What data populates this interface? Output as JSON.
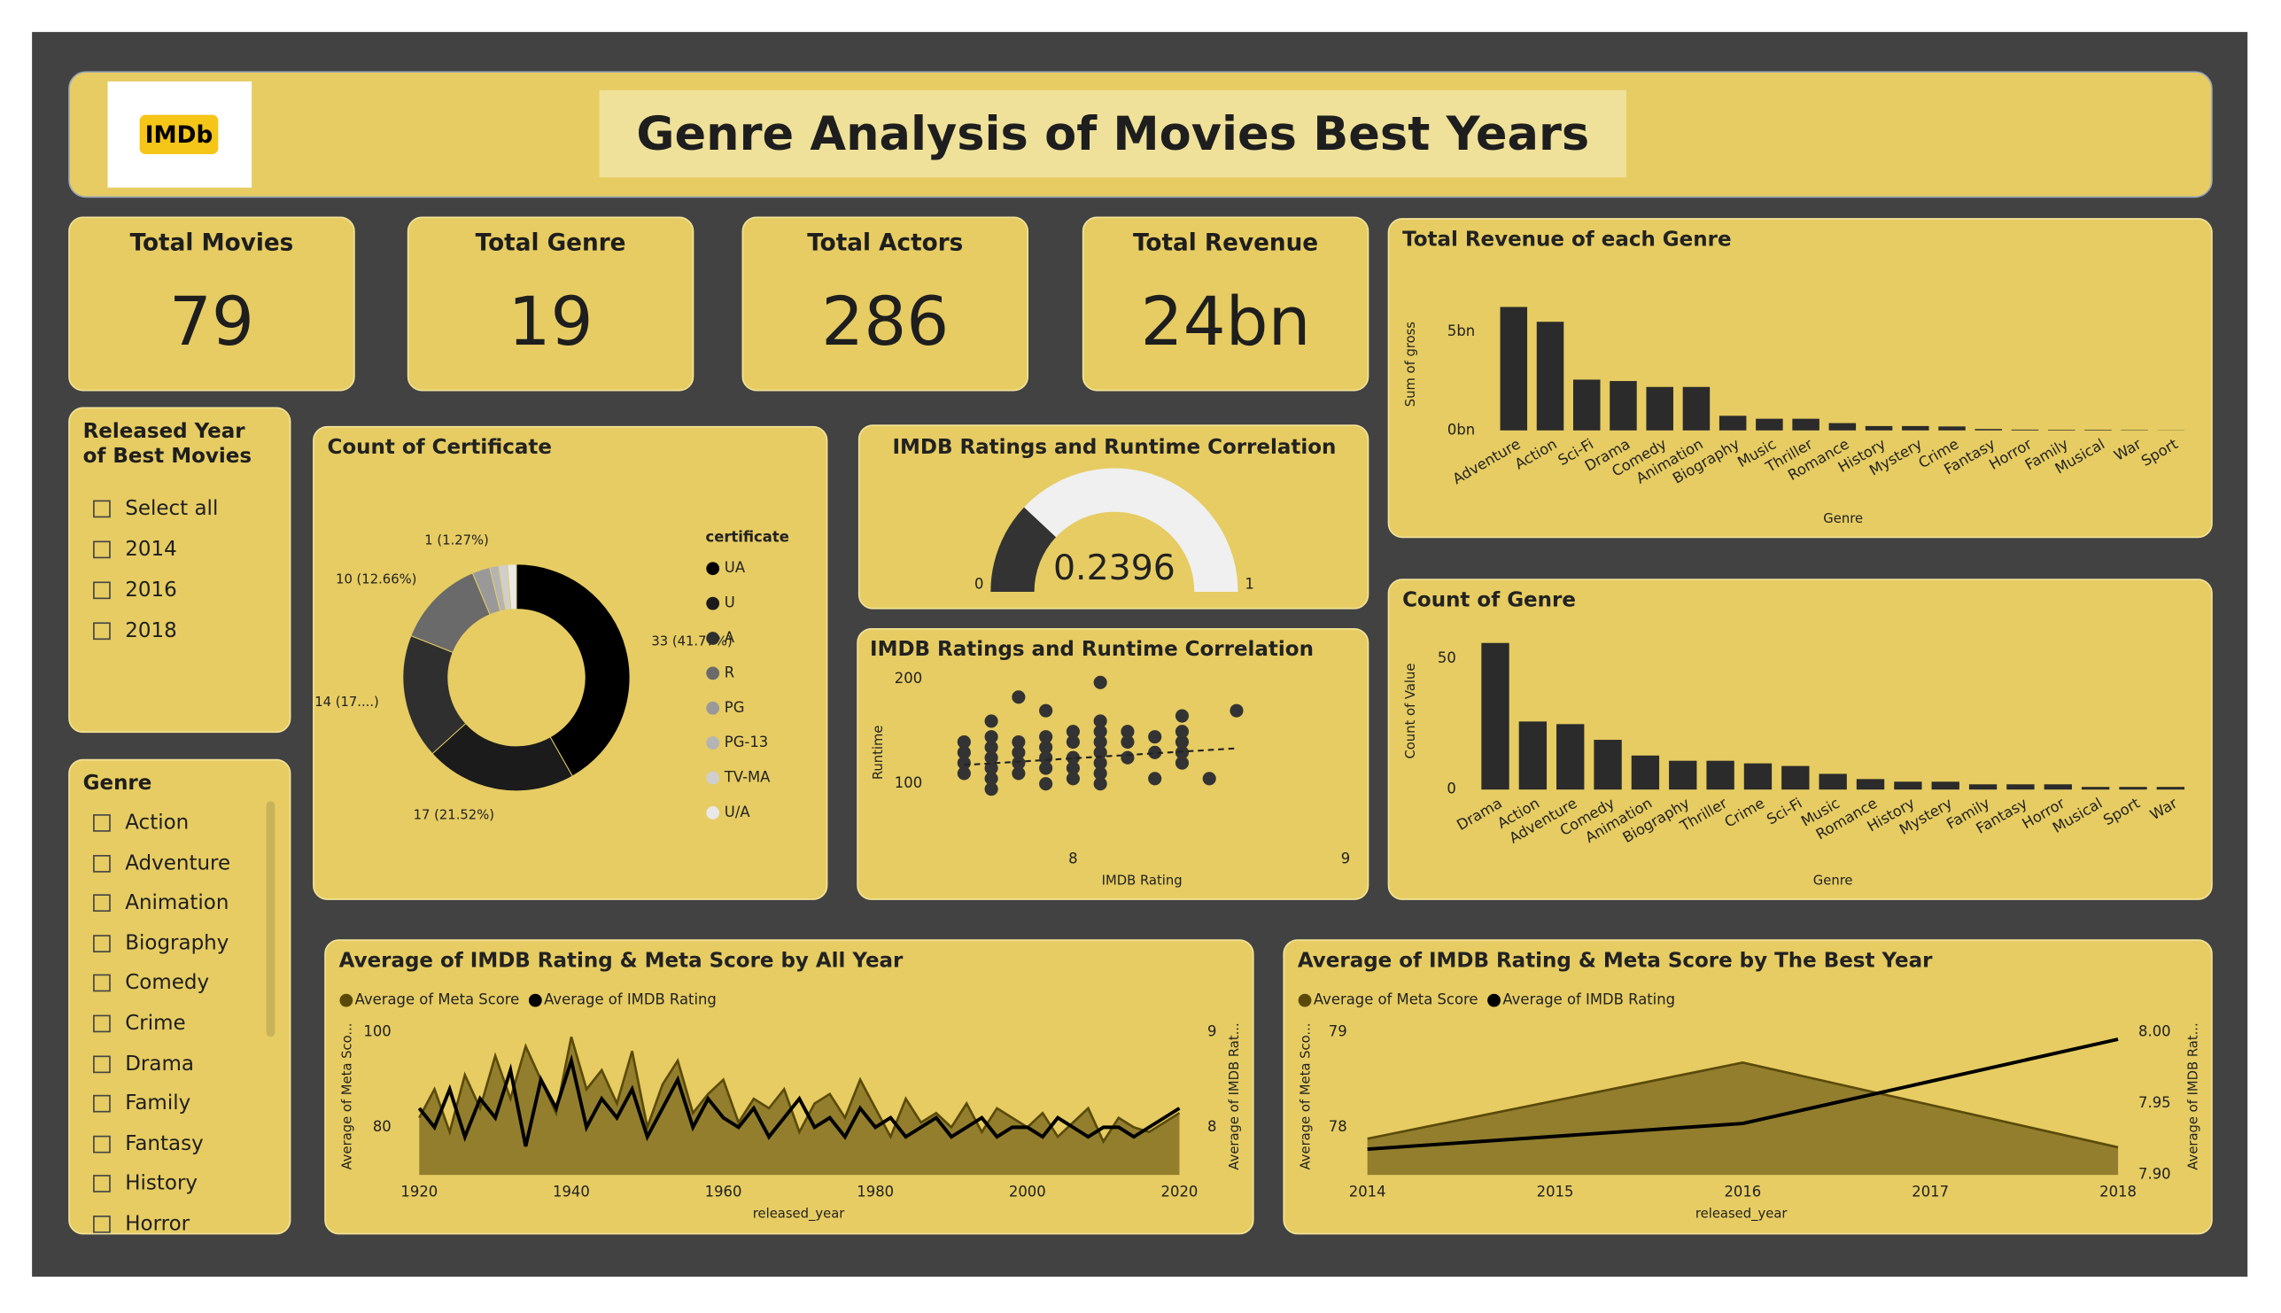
{
  "header": {
    "logo": "IMDb",
    "title": "Genre Analysis of Movies Best Years"
  },
  "kpis": [
    {
      "label": "Total Movies",
      "value": 79
    },
    {
      "label": "Total Genre",
      "value": 19
    },
    {
      "label": "Total Actors",
      "value": 286
    },
    {
      "label": "Total Revenue",
      "value": "24bn"
    }
  ],
  "slicers": [
    {
      "title": "Released Year of Best Movies",
      "items": [
        "Select all",
        "2014",
        "2016",
        "2018"
      ]
    },
    {
      "title": "Genre",
      "items": [
        "Action",
        "Adventure",
        "Animation",
        "Biography",
        "Comedy",
        "Crime",
        "Drama",
        "Family",
        "Fantasy",
        "History",
        "Horror"
      ]
    }
  ],
  "chart_data": [
    {
      "type": "bar",
      "title": "Total Revenue of each Genre",
      "x_label": "Genre",
      "y_label": "Sum of gross",
      "color": "#2b2b2b",
      "categories": [
        "Adventure",
        "Action",
        "Sci-Fi",
        "Drama",
        "Comedy",
        "Animation",
        "Biography",
        "Music",
        "Thriller",
        "Romance",
        "History",
        "Mystery",
        "Crime",
        "Fantasy",
        "Horror",
        "Family",
        "Musical",
        "War",
        "Sport"
      ],
      "values": [
        6250000000,
        5500000000,
        2570000000,
        2500000000,
        2200000000,
        2200000000,
        740000000,
        590000000,
        590000000,
        370000000,
        220000000,
        220000000,
        200000000,
        70000000,
        40000000,
        30000000,
        30000000,
        20000000,
        10000000
      ],
      "ylim": [
        0,
        6700000000
      ],
      "yticks": [
        {
          "value": 0,
          "label": "0bn"
        },
        {
          "value": 5000000000,
          "label": "5bn"
        }
      ]
    },
    {
      "type": "pie",
      "title": "Count of Certificate",
      "legend_title": "certificate",
      "categories": [
        "UA",
        "U",
        "A",
        "R",
        "PG",
        "PG-13",
        "TV-MA",
        "U/A"
      ],
      "values": [
        33,
        17,
        14,
        10,
        2,
        1,
        1,
        1
      ],
      "value_labels": [
        "33 (41.77%)",
        "17 (21.52%)",
        "14 (17....)",
        "10 (12.66%)",
        null,
        "1 (1.27%)",
        null,
        null
      ],
      "colors": [
        "#000000",
        "#1b1b1b",
        "#2f2f2f",
        "#6a6a6a",
        "#999999",
        "#b4b4b4",
        "#cfcfcf",
        "#e9e9e9"
      ]
    },
    {
      "type": "gauge",
      "title": "IMDB Ratings and Runtime Correlation",
      "value": 0.2396,
      "min": 0,
      "max": 1,
      "color": "#333333",
      "track_color": "#f0f0f0"
    },
    {
      "type": "scatter",
      "title": "IMDB Ratings and Runtime Correlation",
      "x_label": "IMDB Rating",
      "y_label": "Runtime",
      "color": "#333333",
      "x": [
        7.6,
        7.6,
        7.6,
        7.6,
        7.7,
        7.7,
        7.7,
        7.7,
        7.7,
        7.7,
        7.7,
        7.8,
        7.8,
        7.8,
        7.8,
        7.8,
        7.9,
        7.9,
        7.9,
        7.9,
        7.9,
        7.9,
        8.0,
        8.0,
        8.0,
        8.0,
        8.0,
        8.1,
        8.1,
        8.1,
        8.1,
        8.1,
        8.1,
        8.1,
        8.1,
        8.2,
        8.2,
        8.2,
        8.3,
        8.3,
        8.3,
        8.4,
        8.4,
        8.4,
        8.4,
        8.4,
        8.5,
        8.6
      ],
      "y": [
        110,
        120,
        130,
        140,
        95,
        105,
        115,
        125,
        135,
        145,
        160,
        110,
        120,
        130,
        140,
        183,
        100,
        115,
        125,
        135,
        145,
        170,
        105,
        115,
        125,
        140,
        150,
        100,
        110,
        120,
        130,
        140,
        150,
        160,
        197,
        125,
        140,
        150,
        105,
        130,
        145,
        120,
        130,
        140,
        150,
        165,
        105,
        170
      ],
      "trendline": {
        "x": [
          7.6,
          8.6
        ],
        "y": [
          118,
          134
        ]
      },
      "xlim": [
        7.5,
        9.0
      ],
      "xticks": [
        8,
        9
      ],
      "ylim": [
        50,
        210
      ],
      "yticks": [
        100,
        200
      ]
    },
    {
      "type": "bar",
      "title": "Count of Genre",
      "x_label": "Genre",
      "y_label": "Count of Value",
      "color": "#2b2b2b",
      "categories": [
        "Drama",
        "Action",
        "Adventure",
        "Comedy",
        "Animation",
        "Biography",
        "Thriller",
        "Crime",
        "Sci-Fi",
        "Music",
        "Romance",
        "History",
        "Mystery",
        "Family",
        "Fantasy",
        "Horror",
        "Musical",
        "Sport",
        "War"
      ],
      "values": [
        56,
        26,
        25,
        19,
        13,
        11,
        11,
        10,
        9,
        6,
        4,
        3,
        3,
        2,
        2,
        2,
        1,
        1,
        1
      ],
      "ylim": [
        0,
        60
      ],
      "yticks": [
        0,
        50
      ]
    },
    {
      "type": "area_line",
      "title": "Average of IMDB Rating & Meta Score by All Year",
      "x_label": "released_year",
      "y_label": "Average of Meta Sco...",
      "y2_label": "Average of IMDB Rat...",
      "x": [
        1920,
        1922,
        1924,
        1926,
        1928,
        1930,
        1932,
        1934,
        1936,
        1938,
        1940,
        1942,
        1944,
        1946,
        1948,
        1950,
        1952,
        1954,
        1956,
        1958,
        1960,
        1962,
        1964,
        1966,
        1968,
        1970,
        1972,
        1974,
        1976,
        1978,
        1980,
        1982,
        1984,
        1986,
        1988,
        1990,
        1992,
        1994,
        1996,
        1998,
        2000,
        2002,
        2004,
        2006,
        2008,
        2010,
        2012,
        2014,
        2016,
        2018,
        2020
      ],
      "series": [
        {
          "name": "Average of Meta Score",
          "color": "#5a4a0a",
          "axis": "y",
          "area": true,
          "values": [
            82,
            88,
            79,
            91,
            84,
            95,
            86,
            97,
            90,
            83,
            99,
            88,
            92,
            85,
            96,
            80,
            89,
            94,
            83,
            87,
            90,
            81,
            86,
            84,
            88,
            79,
            85,
            87,
            82,
            90,
            84,
            78,
            86,
            81,
            83,
            80,
            85,
            79,
            84,
            82,
            80,
            83,
            78,
            81,
            84,
            77,
            82,
            80,
            79,
            81,
            83
          ]
        },
        {
          "name": "Average of IMDB Rating",
          "color": "#000000",
          "axis": "y2",
          "values": [
            8.2,
            8.0,
            8.4,
            7.9,
            8.3,
            8.1,
            8.6,
            7.8,
            8.5,
            8.2,
            8.7,
            8.0,
            8.3,
            8.1,
            8.4,
            7.9,
            8.2,
            8.5,
            8.0,
            8.3,
            8.1,
            8.0,
            8.2,
            7.9,
            8.1,
            8.3,
            8.0,
            8.1,
            7.9,
            8.2,
            8.0,
            8.1,
            7.9,
            8.0,
            8.1,
            7.9,
            8.0,
            8.1,
            7.9,
            8.0,
            8.0,
            7.9,
            8.1,
            8.0,
            7.9,
            8.0,
            8.0,
            7.9,
            8.0,
            8.1,
            8.2
          ]
        }
      ],
      "xlim": [
        1919,
        2021
      ],
      "xticks": [
        1920,
        1940,
        1960,
        1980,
        2000,
        2020
      ],
      "ylim": [
        70,
        103
      ],
      "yticks": [
        80,
        100
      ],
      "y2lim": [
        7.5,
        9.15
      ],
      "y2ticks": [
        8,
        9
      ]
    },
    {
      "type": "area_line",
      "title": "Average of IMDB Rating & Meta Score by The Best Year",
      "x_label": "released_year",
      "y_label": "Average of Meta Sco...",
      "y2_label": "Average of IMDB Rat...",
      "x": [
        2014,
        2016,
        2018
      ],
      "series": [
        {
          "name": "Average of Meta Score",
          "color": "#5a4a0a",
          "axis": "y",
          "area": true,
          "values": [
            77.88,
            78.68,
            77.79
          ]
        },
        {
          "name": "Average of IMDB Rating",
          "color": "#000000",
          "axis": "y2",
          "values": [
            7.918,
            7.936,
            7.995
          ]
        }
      ],
      "xlim": [
        2014,
        2018
      ],
      "xticks": [
        2014,
        2015,
        2016,
        2017,
        2018
      ],
      "ylim": [
        77.5,
        79.15
      ],
      "yticks": [
        78,
        79
      ],
      "y2lim": [
        7.9,
        8.01
      ],
      "y2ticks": [
        {
          "value": 7.9,
          "label": "7.90"
        },
        {
          "value": 7.95,
          "label": "7.95"
        },
        {
          "value": 8.0,
          "label": "8.00"
        }
      ]
    }
  ]
}
